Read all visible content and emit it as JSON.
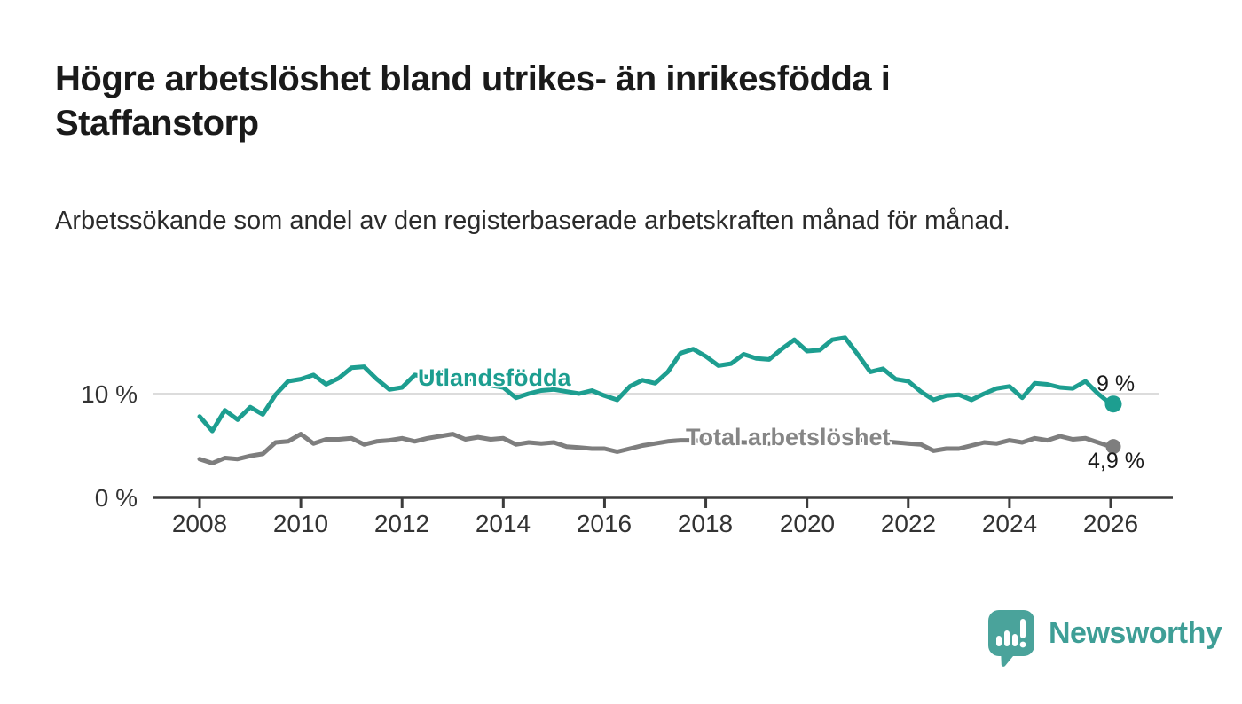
{
  "header": {
    "title": "Högre arbetslöshet bland utrikes- än inrikesfödda i Staffanstorp",
    "subtitle": "Arbetssökande som andel av den registerbaserade arbetskraften månad för månad."
  },
  "chart_data": {
    "type": "line",
    "title": "Högre arbetslöshet bland utrikes- än inrikesfödda i Staffanstorp",
    "xlabel": "",
    "ylabel": "Arbetssökande som andel av den registerbaserade arbetskraften",
    "x_start": 2008,
    "x_step": 0.25,
    "x_end": 2026,
    "ylim": [
      0,
      16.5
    ],
    "grid": "single-horizontal-line-at-10",
    "legend_position": "inline-labels-on-lines",
    "yticks": [
      10,
      0
    ],
    "ytick_labels": [
      "10 %",
      "0 %"
    ],
    "xticks": [
      2008,
      2010,
      2012,
      2014,
      2016,
      2018,
      2020,
      2022,
      2024,
      2026
    ],
    "xtick_labels": [
      "2008",
      "2010",
      "2012",
      "2014",
      "2016",
      "2018",
      "2020",
      "2022",
      "2024",
      "2026"
    ],
    "series": [
      {
        "name": "Utlandsfödda",
        "color": "#1d9e90",
        "end_value": 9.0,
        "end_label": "9 %",
        "values": [
          7.8,
          6.4,
          8.4,
          7.5,
          8.7,
          8.0,
          9.9,
          11.2,
          11.4,
          11.8,
          10.9,
          11.5,
          12.5,
          12.6,
          11.4,
          10.4,
          10.6,
          11.8,
          11.6,
          12.2,
          11.3,
          11.7,
          11.0,
          10.8,
          10.6,
          9.6,
          10.0,
          10.3,
          10.4,
          10.2,
          10.0,
          10.3,
          9.8,
          9.4,
          10.7,
          11.3,
          11.0,
          12.1,
          13.9,
          14.3,
          13.6,
          12.7,
          12.9,
          13.8,
          13.4,
          13.3,
          14.3,
          15.2,
          14.1,
          14.2,
          15.2,
          15.4,
          13.8,
          12.1,
          12.4,
          11.4,
          11.2,
          10.2,
          9.4,
          9.8,
          9.9,
          9.4,
          10.0,
          10.5,
          10.7,
          9.6,
          11.0,
          10.9,
          10.6,
          10.5,
          11.2,
          10.0,
          9.0
        ]
      },
      {
        "name": "Total arbetslöshet",
        "color": "#7e7e7e",
        "end_value": 4.9,
        "end_label": "4,9 %",
        "values": [
          3.7,
          3.3,
          3.8,
          3.7,
          4.0,
          4.2,
          5.3,
          5.4,
          6.1,
          5.2,
          5.6,
          5.6,
          5.7,
          5.1,
          5.4,
          5.5,
          5.7,
          5.4,
          5.7,
          5.9,
          6.1,
          5.6,
          5.8,
          5.6,
          5.7,
          5.1,
          5.3,
          5.2,
          5.3,
          4.9,
          4.8,
          4.7,
          4.7,
          4.4,
          4.7,
          5.0,
          5.2,
          5.4,
          5.5,
          5.5,
          5.4,
          5.3,
          5.4,
          5.3,
          5.3,
          5.2,
          5.3,
          5.4,
          5.5,
          5.8,
          5.9,
          5.7,
          5.6,
          5.5,
          5.4,
          5.3,
          5.2,
          5.1,
          4.5,
          4.7,
          4.7,
          5.0,
          5.3,
          5.2,
          5.5,
          5.3,
          5.7,
          5.5,
          5.9,
          5.6,
          5.7,
          5.3,
          4.9
        ]
      }
    ]
  },
  "footer": {
    "brand": "Newsworthy",
    "brand_color": "#3e9e96",
    "logo_icon": "bar-chart-speech-bubble-icon"
  },
  "colors": {
    "background": "#ffffff",
    "title_text": "#1a1a1a",
    "axis": "#3c3c3c",
    "gridline": "#dcdcdc",
    "tick_text": "#333333",
    "accent_teal": "#1d9e90",
    "accent_gray": "#7e7e7e"
  }
}
